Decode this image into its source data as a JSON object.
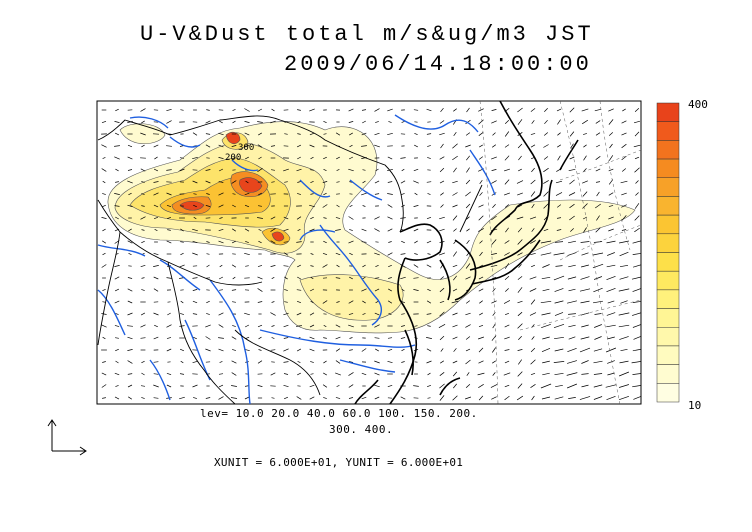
{
  "title": {
    "line1": "U-V&Dust total m/s&ug/m3 JST",
    "line2": "2009/06/14.18:00:00"
  },
  "contour_levels": {
    "line1": "lev= 10.0 20.0 40.0 60.0 100. 150. 200.",
    "line2": "300. 400."
  },
  "vector_units": "XUNIT = 6.000E+01, YUNIT = 6.000E+01",
  "colorbar": {
    "max_label": "400",
    "min_label": "10",
    "colors": [
      "#e8431b",
      "#f05a1c",
      "#f2731e",
      "#f58b20",
      "#f7a128",
      "#f9b42f",
      "#fbc532",
      "#fcd33d",
      "#fde049",
      "#fee960",
      "#fff17c",
      "#fff595",
      "#fff8ab",
      "#fffbbf",
      "#fffcd0",
      "#fffee2"
    ]
  },
  "map_style": {
    "coastline_color": "#000000",
    "river_color": "#1f5fe0",
    "dust_fill_colors": [
      "#fffbd0",
      "#fff3a8",
      "#fde36a",
      "#fbc233",
      "#f58e22",
      "#e8451c"
    ]
  }
}
